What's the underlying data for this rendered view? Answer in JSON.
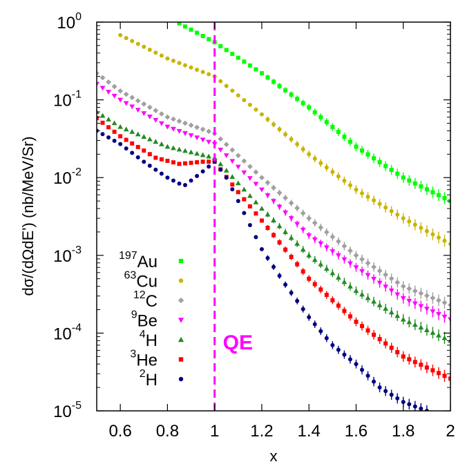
{
  "chart_data": {
    "type": "scatter",
    "title": "",
    "xlabel": "x",
    "ylabel": "dσ/(dΩdE') (nb/MeV/Sr)",
    "xlim": [
      0.5,
      2.0
    ],
    "ylim": [
      1e-05,
      1.0
    ],
    "yscale": "log",
    "x_ticks": [
      "0.6",
      "0.8",
      "1",
      "1.2",
      "1.4",
      "1.6",
      "1.8",
      "2"
    ],
    "x_tick_values": [
      0.6,
      0.8,
      1.0,
      1.2,
      1.4,
      1.6,
      1.8,
      2.0
    ],
    "y_ticks": [
      {
        "value": 1e-05,
        "base": "10",
        "exp": "-5"
      },
      {
        "value": 0.0001,
        "base": "10",
        "exp": "-4"
      },
      {
        "value": 0.001,
        "base": "10",
        "exp": "-3"
      },
      {
        "value": 0.01,
        "base": "10",
        "exp": "-2"
      },
      {
        "value": 0.1,
        "base": "10",
        "exp": "-1"
      },
      {
        "value": 1.0,
        "base": "10",
        "exp": "0"
      }
    ],
    "annotation": {
      "text": "QE",
      "color": "#ff00ff",
      "x": 1.0
    },
    "legend_position": "bottom-left",
    "series": [
      {
        "mass": "197",
        "element": "Au",
        "color": "#00ff00",
        "marker": "square",
        "knots": [
          [
            0.84,
            1.0
          ],
          [
            1.0,
            0.55
          ],
          [
            1.2,
            0.22
          ],
          [
            1.4,
            0.08
          ],
          [
            1.6,
            0.025
          ],
          [
            1.8,
            0.01
          ],
          [
            2.0,
            0.005
          ]
        ]
      },
      {
        "mass": "63",
        "element": "Cu",
        "color": "#c8b400",
        "marker": "circle",
        "knots": [
          [
            0.6,
            0.68
          ],
          [
            0.8,
            0.34
          ],
          [
            1.0,
            0.2
          ],
          [
            1.2,
            0.065
          ],
          [
            1.4,
            0.02
          ],
          [
            1.6,
            0.007
          ],
          [
            1.8,
            0.003
          ],
          [
            2.0,
            0.0014
          ]
        ]
      },
      {
        "mass": "12",
        "element": "C",
        "color": "#a0a0a0",
        "marker": "diamond",
        "knots": [
          [
            0.5,
            0.22
          ],
          [
            0.6,
            0.13
          ],
          [
            0.8,
            0.06
          ],
          [
            1.0,
            0.037
          ],
          [
            1.2,
            0.01
          ],
          [
            1.4,
            0.003
          ],
          [
            1.6,
            0.001
          ],
          [
            1.8,
            0.0004
          ],
          [
            2.0,
            0.00023
          ]
        ]
      },
      {
        "mass": "9",
        "element": "Be",
        "color": "#ff00ff",
        "marker": "triangle-down",
        "knots": [
          [
            0.5,
            0.16
          ],
          [
            0.6,
            0.1
          ],
          [
            0.8,
            0.045
          ],
          [
            1.0,
            0.027
          ],
          [
            1.2,
            0.007
          ],
          [
            1.4,
            0.0018
          ],
          [
            1.6,
            0.0007
          ],
          [
            1.8,
            0.00028
          ],
          [
            2.0,
            0.00015
          ]
        ]
      },
      {
        "mass": "4",
        "element": "H",
        "color": "#228b22",
        "marker": "triangle-up",
        "knots": [
          [
            0.5,
            0.07
          ],
          [
            0.6,
            0.045
          ],
          [
            0.8,
            0.025
          ],
          [
            1.0,
            0.018
          ],
          [
            1.2,
            0.004
          ],
          [
            1.4,
            0.001
          ],
          [
            1.6,
            0.00035
          ],
          [
            1.8,
            0.00015
          ],
          [
            2.0,
            8e-05
          ]
        ]
      },
      {
        "mass": "3",
        "element": "He",
        "color": "#ff0000",
        "marker": "square",
        "knots": [
          [
            0.5,
            0.058
          ],
          [
            0.6,
            0.034
          ],
          [
            0.75,
            0.018
          ],
          [
            0.85,
            0.015
          ],
          [
            0.95,
            0.016
          ],
          [
            1.0,
            0.016
          ],
          [
            1.1,
            0.0065
          ],
          [
            1.2,
            0.0028
          ],
          [
            1.4,
            0.0005
          ],
          [
            1.6,
            0.00014
          ],
          [
            1.8,
            5e-05
          ],
          [
            2.0,
            2.6e-05
          ]
        ]
      },
      {
        "mass": "2",
        "element": "H",
        "color": "#000080",
        "marker": "circle",
        "knots": [
          [
            0.5,
            0.04
          ],
          [
            0.6,
            0.027
          ],
          [
            0.7,
            0.016
          ],
          [
            0.8,
            0.01
          ],
          [
            0.87,
            0.0078
          ],
          [
            0.95,
            0.012
          ],
          [
            1.0,
            0.016
          ],
          [
            1.05,
            0.01
          ],
          [
            1.1,
            0.005
          ],
          [
            1.2,
            0.0012
          ],
          [
            1.3,
            0.00042
          ],
          [
            1.4,
            0.00016
          ],
          [
            1.5,
            7e-05
          ],
          [
            1.6,
            4e-05
          ],
          [
            1.7,
            2e-05
          ],
          [
            1.8,
            1.3e-05
          ],
          [
            1.9,
            1e-05
          ]
        ]
      }
    ]
  }
}
